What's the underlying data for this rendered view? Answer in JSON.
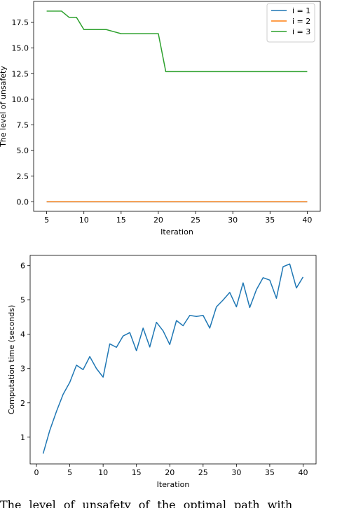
{
  "chart_data": [
    {
      "type": "line",
      "xlabel": "Iteration",
      "ylabel": "The level of unsafety",
      "xlim": [
        3.25,
        41.75
      ],
      "ylim": [
        -0.93,
        19.55
      ],
      "xticks": [
        5,
        10,
        15,
        20,
        25,
        30,
        35,
        40
      ],
      "yticks": [
        0.0,
        2.5,
        5.0,
        7.5,
        10.0,
        12.5,
        15.0,
        17.5
      ],
      "ytick_labels": [
        "0.0",
        "2.5",
        "5.0",
        "7.5",
        "10.0",
        "12.5",
        "15.0",
        "17.5"
      ],
      "legend_position": "top-right",
      "grid": false,
      "series": [
        {
          "name": "i = 1",
          "color": "#1f77b4",
          "x": [
            5,
            40
          ],
          "y": [
            0.0,
            0.0
          ]
        },
        {
          "name": "i = 2",
          "color": "#ff7f0e",
          "x": [
            5,
            40
          ],
          "y": [
            0.0,
            0.0
          ]
        },
        {
          "name": "i = 3",
          "color": "#2ca02c",
          "x": [
            5,
            7,
            8,
            9,
            10,
            13,
            14,
            15,
            20,
            21,
            40
          ],
          "y": [
            18.6,
            18.6,
            18.0,
            18.0,
            16.8,
            16.8,
            16.6,
            16.4,
            16.4,
            12.7,
            12.7
          ]
        }
      ]
    },
    {
      "type": "line",
      "xlabel": "Iteration",
      "ylabel": "Computation time (seconds)",
      "xlim": [
        -0.95,
        41.95
      ],
      "ylim": [
        0.22,
        6.3
      ],
      "xticks": [
        0,
        5,
        10,
        15,
        20,
        25,
        30,
        35,
        40
      ],
      "yticks": [
        1,
        2,
        3,
        4,
        5,
        6
      ],
      "grid": false,
      "series": [
        {
          "color": "#1f77b4",
          "x": [
            1,
            2,
            3,
            4,
            5,
            6,
            7,
            8,
            9,
            10,
            11,
            12,
            13,
            14,
            15,
            16,
            17,
            18,
            19,
            20,
            21,
            22,
            23,
            24,
            25,
            26,
            27,
            28,
            29,
            30,
            31,
            32,
            33,
            34,
            35,
            36,
            37,
            38,
            39,
            40
          ],
          "y": [
            0.52,
            1.2,
            1.75,
            2.25,
            2.6,
            3.1,
            2.97,
            3.35,
            3.0,
            2.75,
            3.72,
            3.62,
            3.95,
            4.05,
            3.52,
            4.18,
            3.63,
            4.35,
            4.1,
            3.7,
            4.4,
            4.25,
            4.55,
            4.52,
            4.55,
            4.18,
            4.8,
            5.0,
            5.22,
            4.8,
            5.5,
            4.78,
            5.3,
            5.65,
            5.58,
            5.05,
            5.97,
            6.05,
            5.35,
            5.67
          ]
        }
      ]
    }
  ],
  "caption": "The level of unsafety of the optimal path with"
}
